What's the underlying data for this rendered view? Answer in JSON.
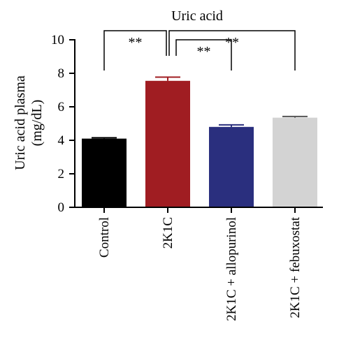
{
  "chart_data": {
    "type": "bar",
    "title": "Uric acid",
    "ylabel_lines": [
      "Uric acid plasma",
      "(mg/dL)"
    ],
    "categories": [
      "Control",
      "2K1C",
      "2K1C + allopurinol",
      "2K1C + febuxostat"
    ],
    "values": [
      4.1,
      7.55,
      4.8,
      5.35
    ],
    "errors": [
      0.05,
      0.22,
      0.12,
      0.07
    ],
    "colors": [
      "#000000",
      "#a01d22",
      "#2a2f7e",
      "#d3d3d3"
    ],
    "ylim": [
      0,
      10
    ],
    "yticks": [
      0,
      2,
      4,
      6,
      8,
      10
    ],
    "significance": [
      {
        "from": 0,
        "to": 1,
        "label": "**",
        "level": 0
      },
      {
        "from": 1,
        "to": 2,
        "label": "**",
        "level": 1
      },
      {
        "from": 1,
        "to": 3,
        "label": "**",
        "level": 0
      }
    ]
  }
}
